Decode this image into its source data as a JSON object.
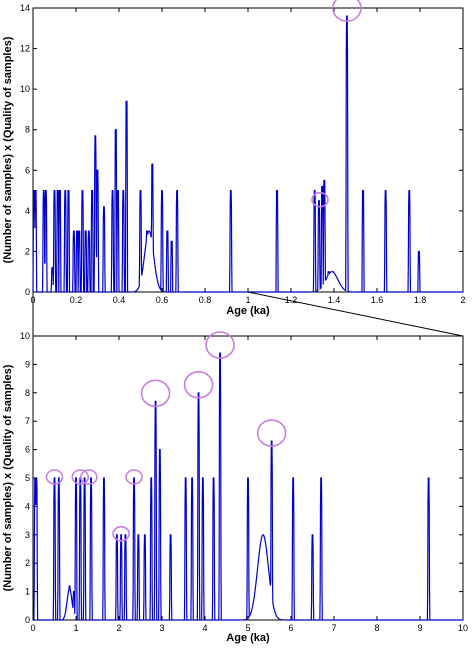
{
  "chart_data": [
    {
      "type": "line",
      "xlabel": "Age (ka)",
      "ylabel": "(Number of samples) x (Quality of samples)",
      "xlim": [
        0,
        2
      ],
      "ylim": [
        0,
        14
      ],
      "xticks": [
        "0",
        "0.2",
        "0.4",
        "0.6",
        "0.8",
        "1",
        "1.2",
        "1.4",
        "1.6",
        "1.8",
        "2"
      ],
      "yticks": [
        "0",
        "2",
        "4",
        "6",
        "8",
        "10",
        "12",
        "14"
      ],
      "line_color": "#0000cc",
      "grid": false,
      "peaks": [
        {
          "x": 0.005,
          "y": 5
        },
        {
          "x": 0.012,
          "y": 5
        },
        {
          "x": 0.05,
          "y": 5
        },
        {
          "x": 0.06,
          "y": 5
        },
        {
          "x": 0.09,
          "y": 1.2
        },
        {
          "x": 0.1,
          "y": 5
        },
        {
          "x": 0.115,
          "y": 5
        },
        {
          "x": 0.125,
          "y": 5
        },
        {
          "x": 0.15,
          "y": 5
        },
        {
          "x": 0.165,
          "y": 5
        },
        {
          "x": 0.19,
          "y": 3
        },
        {
          "x": 0.205,
          "y": 3
        },
        {
          "x": 0.215,
          "y": 3
        },
        {
          "x": 0.23,
          "y": 5
        },
        {
          "x": 0.245,
          "y": 3
        },
        {
          "x": 0.26,
          "y": 3
        },
        {
          "x": 0.275,
          "y": 5
        },
        {
          "x": 0.29,
          "y": 7.7
        },
        {
          "x": 0.3,
          "y": 6
        },
        {
          "x": 0.33,
          "y": 4.2
        },
        {
          "x": 0.37,
          "y": 5
        },
        {
          "x": 0.385,
          "y": 8
        },
        {
          "x": 0.395,
          "y": 5
        },
        {
          "x": 0.42,
          "y": 5
        },
        {
          "x": 0.435,
          "y": 9.4
        },
        {
          "x": 0.5,
          "y": 5
        },
        {
          "x": 0.53,
          "y": 3
        },
        {
          "x": 0.555,
          "y": 6.3
        },
        {
          "x": 0.6,
          "y": 5
        },
        {
          "x": 0.625,
          "y": 3
        },
        {
          "x": 0.645,
          "y": 2.5
        },
        {
          "x": 0.67,
          "y": 5
        },
        {
          "x": 0.92,
          "y": 5
        },
        {
          "x": 1.135,
          "y": 5
        },
        {
          "x": 1.31,
          "y": 5
        },
        {
          "x": 1.33,
          "y": 4.5
        },
        {
          "x": 1.345,
          "y": 5.2
        },
        {
          "x": 1.355,
          "y": 5.5
        },
        {
          "x": 1.375,
          "y": 1
        },
        {
          "x": 1.395,
          "y": 1
        },
        {
          "x": 1.46,
          "y": 13.6
        },
        {
          "x": 1.535,
          "y": 5
        },
        {
          "x": 1.64,
          "y": 5
        },
        {
          "x": 1.75,
          "y": 5
        },
        {
          "x": 1.795,
          "y": 2
        }
      ],
      "bumps": [
        {
          "x": 0.54,
          "y": 3,
          "w": 0.03
        },
        {
          "x": 1.39,
          "y": 1,
          "w": 0.04
        }
      ],
      "circled_x": [
        1.46,
        1.335
      ]
    },
    {
      "type": "line",
      "xlabel": "Age (ka)",
      "ylabel": "(Number of samples) x (Quality of samples)",
      "xlim": [
        0,
        10
      ],
      "ylim": [
        0,
        10
      ],
      "xticks": [
        "0",
        "1",
        "2",
        "3",
        "4",
        "5",
        "6",
        "7",
        "8",
        "9",
        "10"
      ],
      "yticks": [
        "0",
        "1",
        "2",
        "3",
        "4",
        "5",
        "6",
        "7",
        "8",
        "9",
        "10"
      ],
      "line_color": "#0000cc",
      "grid": false,
      "peaks": [
        {
          "x": 0.05,
          "y": 5
        },
        {
          "x": 0.08,
          "y": 5
        },
        {
          "x": 0.5,
          "y": 5
        },
        {
          "x": 0.6,
          "y": 5
        },
        {
          "x": 0.85,
          "y": 1.2
        },
        {
          "x": 0.95,
          "y": 1
        },
        {
          "x": 1.0,
          "y": 5
        },
        {
          "x": 1.1,
          "y": 5
        },
        {
          "x": 1.2,
          "y": 5
        },
        {
          "x": 1.35,
          "y": 5
        },
        {
          "x": 1.65,
          "y": 5
        },
        {
          "x": 1.95,
          "y": 3
        },
        {
          "x": 2.05,
          "y": 3
        },
        {
          "x": 2.15,
          "y": 3
        },
        {
          "x": 2.35,
          "y": 5
        },
        {
          "x": 2.45,
          "y": 3
        },
        {
          "x": 2.6,
          "y": 3
        },
        {
          "x": 2.75,
          "y": 5
        },
        {
          "x": 2.85,
          "y": 7.7
        },
        {
          "x": 2.95,
          "y": 6
        },
        {
          "x": 3.2,
          "y": 3
        },
        {
          "x": 3.55,
          "y": 5
        },
        {
          "x": 3.7,
          "y": 5
        },
        {
          "x": 3.85,
          "y": 8
        },
        {
          "x": 3.95,
          "y": 5
        },
        {
          "x": 4.2,
          "y": 5
        },
        {
          "x": 4.35,
          "y": 9.4
        },
        {
          "x": 5.0,
          "y": 5
        },
        {
          "x": 5.55,
          "y": 6.3
        },
        {
          "x": 6.05,
          "y": 5
        },
        {
          "x": 6.5,
          "y": 3
        },
        {
          "x": 6.7,
          "y": 5
        },
        {
          "x": 9.2,
          "y": 5
        }
      ],
      "bumps": [
        {
          "x": 5.35,
          "y": 3,
          "w": 0.18
        },
        {
          "x": 0.85,
          "y": 1.1,
          "w": 0.08
        }
      ],
      "circled_x": [
        0.5,
        1.1,
        1.3,
        2.05,
        2.35,
        2.85,
        3.85,
        4.35,
        5.55
      ]
    }
  ]
}
